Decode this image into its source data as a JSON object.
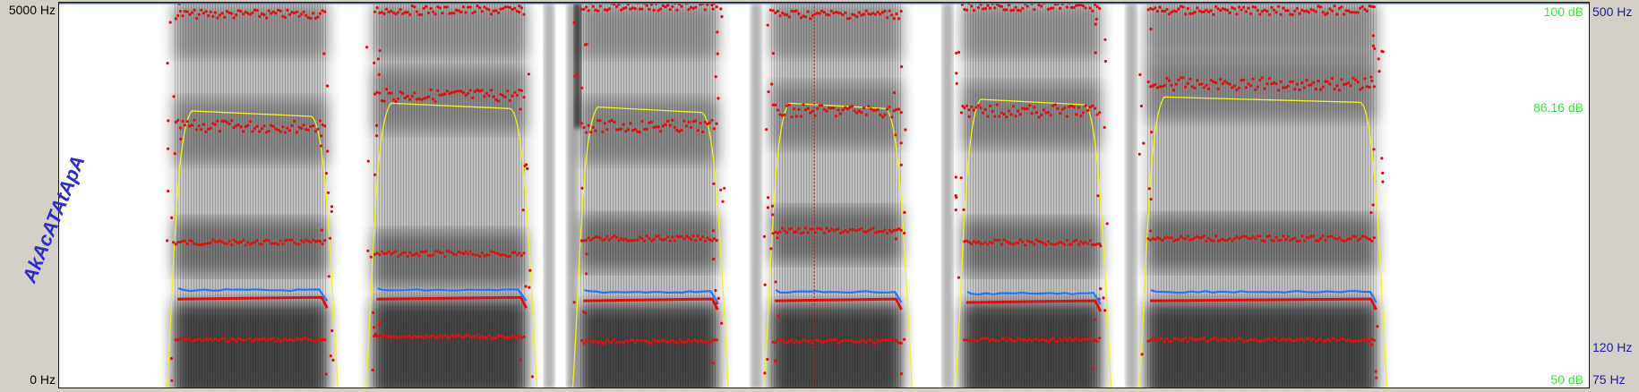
{
  "window": {
    "title": ""
  },
  "axes": {
    "freq_top": "5000 Hz",
    "freq_bottom": "0 Hz",
    "intensity_top": "100 dB",
    "intensity_mid": "86.16 dB",
    "intensity_bottom": "50 dB",
    "pitch_top": "500 Hz",
    "pitch_mid": "120 Hz",
    "pitch_bottom": "75 Hz"
  },
  "annotation": {
    "text": "AkAcATAtApA"
  },
  "colors": {
    "formant": "#e01010",
    "pitch": "#1e78ff",
    "intensity": "#f2f21a",
    "db_label": "#33ee33",
    "pitch_label": "#1a1aa8",
    "annotation": "#2b2bd0"
  },
  "chart_data": {
    "type": "spectrogram",
    "freq_range_hz": [
      0,
      5000
    ],
    "intensity_range_db": [
      50,
      100
    ],
    "pitch_range_hz": [
      75,
      500
    ],
    "vowels": [
      {
        "start": 0.075,
        "end": 0.175,
        "f1": 640,
        "f2": 1900,
        "f3": 3400,
        "f4": 4850,
        "pitch": 122,
        "int_db": 86.0
      },
      {
        "start": 0.205,
        "end": 0.305,
        "f1": 680,
        "f2": 1750,
        "f3": 3800,
        "f4": 4900,
        "pitch": 122,
        "int_db": 87.0
      },
      {
        "start": 0.34,
        "end": 0.43,
        "f1": 620,
        "f2": 1950,
        "f3": 3400,
        "f4": 4950,
        "pitch": 121,
        "int_db": 86.5
      },
      {
        "start": 0.465,
        "end": 0.55,
        "f1": 620,
        "f2": 2050,
        "f3": 3600,
        "f4": 4850,
        "pitch": 121,
        "int_db": 87.0
      },
      {
        "start": 0.59,
        "end": 0.68,
        "f1": 640,
        "f2": 1900,
        "f3": 3600,
        "f4": 4950,
        "pitch": 120,
        "int_db": 87.5
      },
      {
        "start": 0.71,
        "end": 0.86,
        "f1": 640,
        "f2": 1950,
        "f3": 3950,
        "f4": 4900,
        "pitch": 121,
        "int_db": 87.8
      }
    ]
  }
}
